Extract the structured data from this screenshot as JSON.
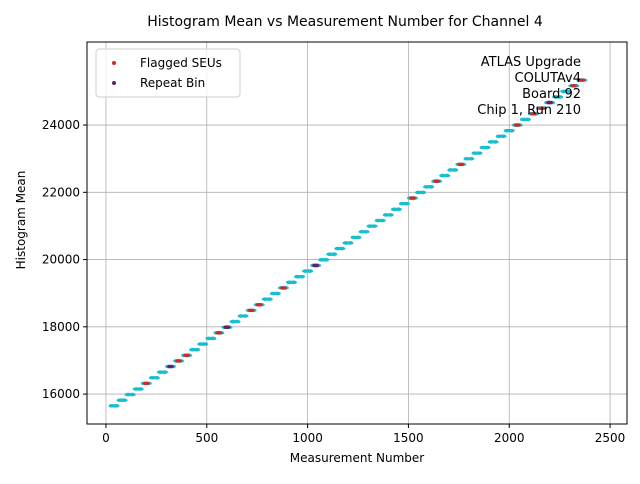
{
  "chart_data": {
    "type": "scatter",
    "title": "Histogram Mean vs Measurement Number for Channel 4",
    "x_label": "Measurement Number",
    "y_label": "Histogram Mean",
    "annotation": [
      "ATLAS Upgrade",
      "COLUTAv4",
      "Board 92",
      "Chip 1, Run 210"
    ],
    "xlim": [
      -94,
      2584
    ],
    "ylim": [
      15110,
      26470
    ],
    "xticks": [
      0,
      500,
      1000,
      1500,
      2000,
      2500
    ],
    "yticks": [
      16000,
      18000,
      20000,
      22000,
      24000
    ],
    "grid": true,
    "legend": "upper-left",
    "series": [
      {
        "color": "#17becf",
        "x": [
          30,
          50,
          70,
          90,
          110,
          130,
          150,
          170,
          190,
          210,
          230,
          250,
          270,
          290,
          310,
          330,
          350,
          370,
          390,
          410,
          430,
          450,
          470,
          490,
          510,
          530,
          550,
          570,
          590,
          610,
          630,
          650,
          670,
          690,
          710,
          730,
          750,
          770,
          790,
          810,
          830,
          850,
          870,
          890,
          910,
          930,
          950,
          970,
          990,
          1010,
          1030,
          1050,
          1070,
          1090,
          1110,
          1130,
          1150,
          1170,
          1190,
          1210,
          1230,
          1250,
          1270,
          1290,
          1310,
          1330,
          1350,
          1370,
          1390,
          1410,
          1430,
          1450,
          1470,
          1490,
          1510,
          1530,
          1550,
          1570,
          1590,
          1610,
          1630,
          1650,
          1670,
          1690,
          1710,
          1730,
          1750,
          1770,
          1790,
          1810,
          1830,
          1850,
          1870,
          1890,
          1910,
          1930,
          1950,
          1970,
          1990,
          2010,
          2030,
          2050,
          2070,
          2090,
          2110,
          2130,
          2150,
          2170,
          2190,
          2210,
          2230,
          2250,
          2270,
          2290,
          2310,
          2330,
          2350,
          2370
        ],
        "values": [
          15650,
          15650,
          15817,
          15817,
          15984,
          15984,
          16151,
          16151,
          16318,
          16318,
          16485,
          16485,
          16652,
          16652,
          16819,
          16819,
          16986,
          16986,
          17153,
          17153,
          17320,
          17320,
          17487,
          17487,
          17654,
          17654,
          17821,
          17821,
          17988,
          17988,
          18155,
          18155,
          18322,
          18322,
          18489,
          18489,
          18656,
          18656,
          18823,
          18823,
          18990,
          18990,
          19157,
          19157,
          19324,
          19324,
          19491,
          19491,
          19658,
          19658,
          19825,
          19825,
          19992,
          19992,
          20159,
          20159,
          20326,
          20326,
          20493,
          20493,
          20660,
          20660,
          20827,
          20827,
          20994,
          20994,
          21161,
          21161,
          21328,
          21328,
          21495,
          21495,
          21662,
          21662,
          21829,
          21829,
          21996,
          21996,
          22163,
          22163,
          22330,
          22330,
          22497,
          22497,
          22664,
          22664,
          22831,
          22831,
          22998,
          22998,
          23165,
          23165,
          23332,
          23332,
          23499,
          23499,
          23666,
          23666,
          23833,
          23833,
          24000,
          24000,
          24167,
          24167,
          24334,
          24334,
          24501,
          24501,
          24668,
          24668,
          24835,
          24835,
          25002,
          25002,
          25169,
          25169,
          25336,
          25336
        ]
      },
      {
        "name": "Flagged SEUs",
        "color": "#d62728",
        "x": [
          200,
          360,
          400,
          560,
          600,
          720,
          760,
          880,
          1040,
          1520,
          1640,
          1760,
          2040,
          2120,
          2160,
          2320,
          2360
        ],
        "values": [
          16318,
          16986,
          17153,
          17821,
          17988,
          18489,
          18656,
          19157,
          19825,
          21829,
          22330,
          22831,
          24000,
          24334,
          24501,
          25169,
          25336
        ]
      },
      {
        "name": "Repeat Bin",
        "color": "#6a1b6a",
        "x": [
          320,
          600,
          1040,
          2200
        ],
        "values": [
          16819,
          17988,
          19825,
          24668
        ]
      }
    ]
  }
}
